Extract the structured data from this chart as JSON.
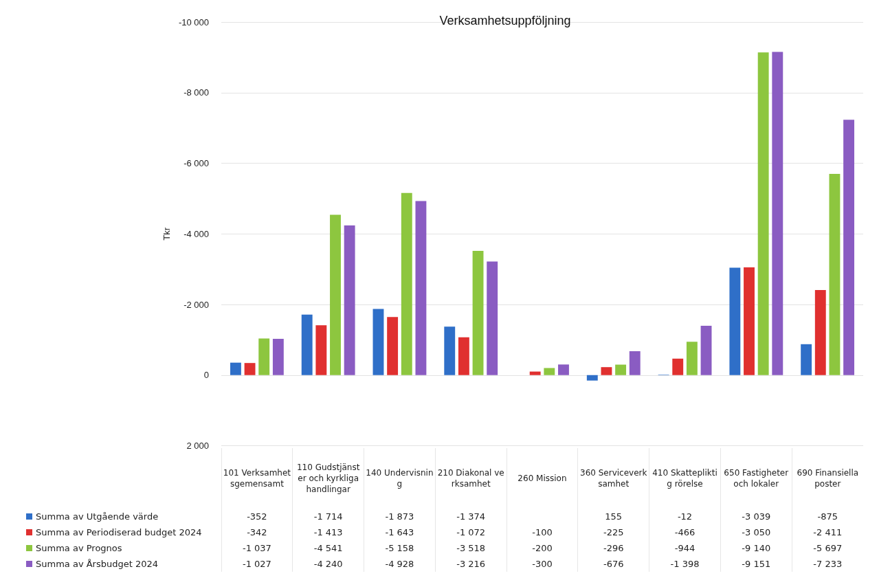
{
  "chart_data": {
    "type": "bar",
    "title": "Verksamhetsuppföljning",
    "ylabel": "Tkr",
    "categories": [
      "101 Verksamhetsgemensamt",
      "110 Gudstjänster och kyrkliga handlingar",
      "140 Undervisning",
      "210 Diakonal verksamhet",
      "260 Mission",
      "360 Serviceverksamhet",
      "410 Skattepliktig rörelse",
      "650 Fastigheter och lokaler",
      "690 Finansiella poster"
    ],
    "series": [
      {
        "name": "Summa av Utgående värde",
        "color": "#2f6fc8",
        "values": [
          -352,
          -1714,
          -1873,
          -1374,
          null,
          155,
          -12,
          -3039,
          -875
        ]
      },
      {
        "name": "Summa av Periodiserad budget 2024",
        "color": "#e0302f",
        "values": [
          -342,
          -1413,
          -1643,
          -1072,
          -100,
          -225,
          -466,
          -3050,
          -2411
        ]
      },
      {
        "name": "Summa av Prognos",
        "color": "#8dc63f",
        "values": [
          -1037,
          -4541,
          -5158,
          -3518,
          -200,
          -296,
          -944,
          -9140,
          -5697
        ]
      },
      {
        "name": "Summa av Årsbudget 2024",
        "color": "#8a5cc2",
        "values": [
          -1027,
          -4240,
          -4928,
          -3216,
          -300,
          -676,
          -1398,
          -9151,
          -7233
        ]
      }
    ],
    "ylim": [
      2000,
      -10000
    ],
    "yticks": [
      {
        "value": 2000,
        "label": "2 000"
      },
      0,
      {
        "value": -2000,
        "label": "-2 000"
      },
      {
        "value": -4000,
        "label": "-4 000"
      },
      {
        "value": -6000,
        "label": "-6 000"
      },
      {
        "value": -8000,
        "label": "-8 000"
      },
      {
        "value": -10000,
        "label": "-10 000"
      }
    ],
    "grid": "y",
    "legend": "bottom left",
    "data_labels": true
  }
}
